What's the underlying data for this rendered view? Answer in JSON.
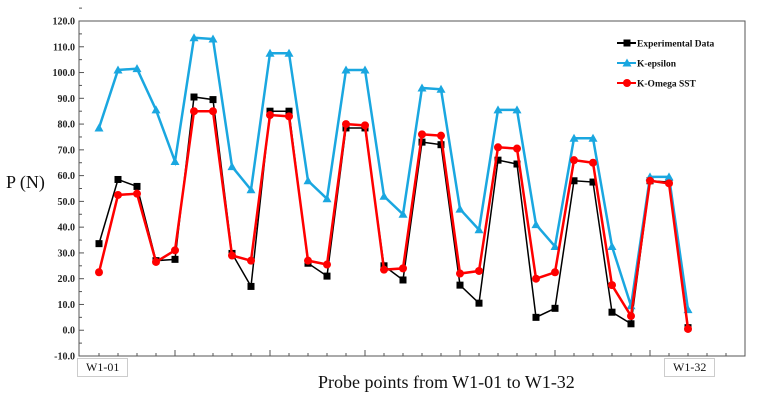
{
  "chart_data": {
    "type": "line",
    "title": "",
    "xlabel": "Probe points from W1-01 to W1-32",
    "ylabel": "P (N)",
    "ylim": [
      -10,
      120
    ],
    "yticks": [
      "-10.0",
      "0.0",
      "10.0",
      "20.0",
      "30.0",
      "40.0",
      "50.0",
      "60.0",
      "70.0",
      "80.0",
      "90.0",
      "100.0",
      "110.0",
      "120.0"
    ],
    "x_start_label": "W1-01",
    "x_end_label": "W1-32",
    "x": [
      1,
      2,
      3,
      4,
      5,
      6,
      7,
      8,
      9,
      10,
      11,
      12,
      13,
      14,
      15,
      16,
      17,
      18,
      19,
      20,
      21,
      22,
      23,
      24,
      25,
      26,
      27,
      28,
      29,
      30,
      31,
      32
    ],
    "grid": false,
    "legend_position": "top-right",
    "series": [
      {
        "name": "Experimental Data",
        "color": "#000000",
        "marker": "square",
        "values": [
          33.6,
          58.5,
          55.8,
          27,
          27.5,
          90.5,
          89.5,
          29.8,
          17,
          85,
          85,
          26,
          21,
          78.5,
          78.5,
          25,
          19.5,
          73,
          72,
          17.5,
          10.5,
          66,
          64.5,
          5,
          8.5,
          58,
          57.5,
          7,
          2.5,
          58,
          57.5,
          1
        ]
      },
      {
        "name": "K-epsilon",
        "color": "#1aa7e0",
        "marker": "triangle",
        "values": [
          78.5,
          101,
          101.5,
          85.5,
          65.5,
          113.5,
          113,
          63.5,
          54.5,
          107.5,
          107.5,
          58,
          51,
          101,
          101,
          52,
          45,
          94,
          93.5,
          47,
          39,
          85.5,
          85.5,
          41,
          32.5,
          74.5,
          74.5,
          32.5,
          9.5,
          59.5,
          59.5,
          8
        ]
      },
      {
        "name": "K-Omega SST",
        "color": "#ff0000",
        "marker": "circle",
        "values": [
          22.5,
          52.5,
          53,
          26.5,
          31,
          85,
          85,
          29,
          27,
          83.5,
          83,
          27,
          25.5,
          80,
          79.5,
          23.5,
          24,
          76,
          75.5,
          22,
          23,
          71,
          70.5,
          20,
          22.5,
          66,
          65,
          17.5,
          5.5,
          58,
          57,
          0.5
        ]
      }
    ]
  }
}
